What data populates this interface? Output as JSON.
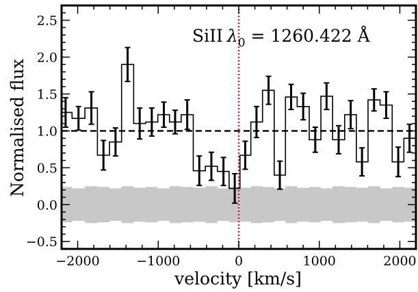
{
  "chart_data": {
    "type": "line",
    "title": "",
    "xlabel": "velocity [km/s]",
    "ylabel": "Normalised flux",
    "xlim": [
      -2200,
      2200
    ],
    "ylim": [
      -0.6,
      2.7
    ],
    "x_ticks": [
      -2000,
      -1000,
      0,
      1000,
      2000
    ],
    "x_tick_labels": [
      "−2000",
      "−1000",
      "0",
      "1000",
      "2000"
    ],
    "y_ticks": [
      -0.5,
      0.0,
      0.5,
      1.0,
      1.5,
      2.0,
      2.5
    ],
    "y_tick_labels": [
      "−0.5",
      "0.0",
      "0.5",
      "1.0",
      "1.5",
      "2.0",
      "2.5"
    ],
    "grid": false,
    "annotation": {
      "ion": "SiII",
      "lambda_symbol": "λ",
      "lambda_subscript": "0",
      "equals_value": " = 1260.422 Å"
    },
    "reference_line": {
      "y": 1.0,
      "style": "dashed",
      "color": "#000000"
    },
    "velocity_zero_line": {
      "x": 0,
      "style": "dotted",
      "color": "#e8102a"
    },
    "error_band": {
      "color": "#c8c8c8"
    },
    "series": [
      {
        "x": [
          -2150,
          -1990,
          -1830,
          -1680,
          -1530,
          -1380,
          -1230,
          -1080,
          -930,
          -790,
          -640,
          -490,
          -340,
          -190,
          -50,
          80,
          220,
          370,
          510,
          650,
          800,
          950,
          1090,
          1240,
          1390,
          1530,
          1680,
          1830,
          1980,
          2120
        ],
        "y": [
          1.25,
          1.17,
          1.31,
          0.67,
          0.85,
          1.9,
          1.1,
          1.12,
          1.22,
          1.12,
          1.22,
          0.46,
          0.52,
          0.45,
          0.22,
          0.67,
          1.12,
          1.55,
          0.4,
          1.46,
          1.33,
          0.88,
          1.47,
          0.88,
          1.22,
          0.58,
          1.42,
          1.35,
          0.58,
          0.9
        ],
        "error": [
          0.2,
          0.16,
          0.22,
          0.2,
          0.19,
          0.23,
          0.21,
          0.19,
          0.17,
          0.16,
          0.2,
          0.2,
          0.19,
          0.19,
          0.2,
          0.19,
          0.21,
          0.19,
          0.19,
          0.17,
          0.18,
          0.17,
          0.18,
          0.19,
          0.19,
          0.19,
          0.15,
          0.18,
          0.2,
          0.19
        ],
        "band": [
          0.24,
          0.22,
          0.25,
          0.24,
          0.22,
          0.25,
          0.23,
          0.24,
          0.22,
          0.25,
          0.24,
          0.23,
          0.25,
          0.22,
          0.24,
          0.23,
          0.25,
          0.24,
          0.22,
          0.25,
          0.23,
          0.24,
          0.22,
          0.25,
          0.24,
          0.23,
          0.25,
          0.22,
          0.24,
          0.23
        ]
      }
    ]
  }
}
